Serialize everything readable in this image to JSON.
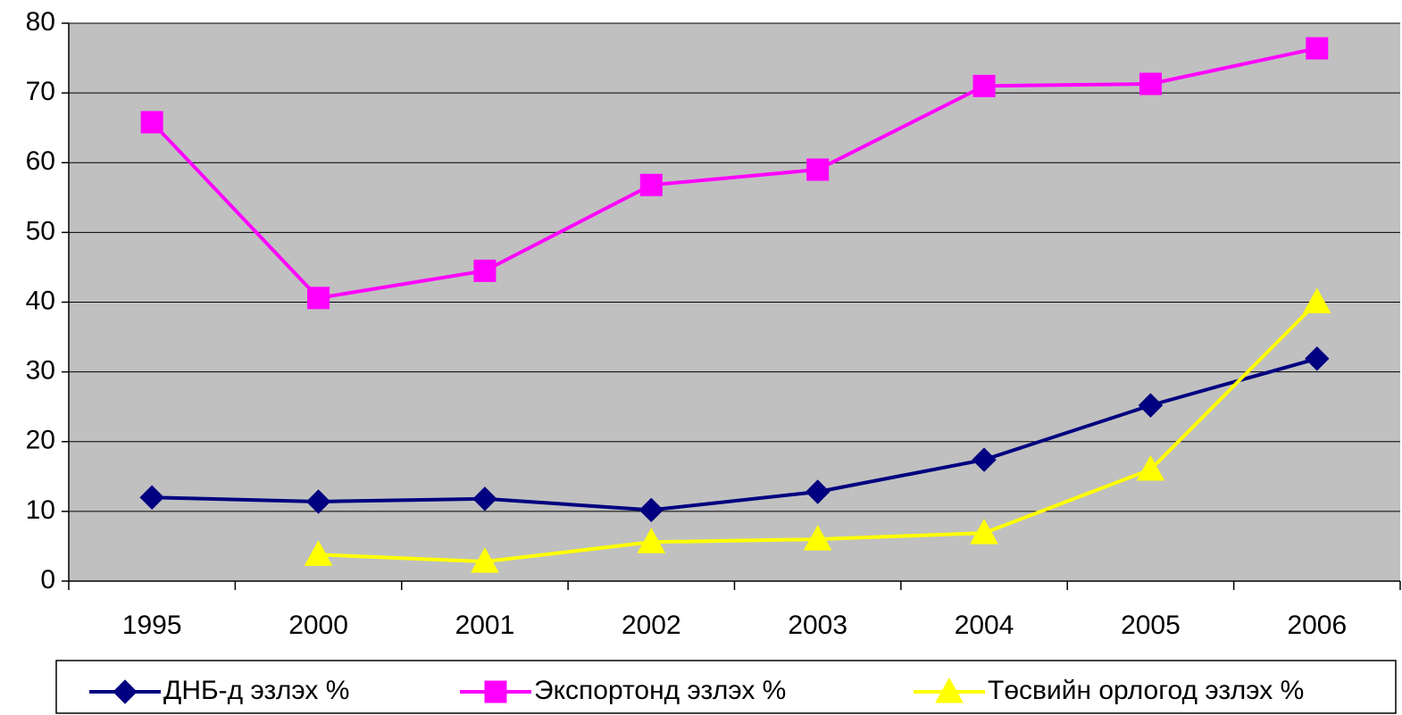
{
  "chart_data": {
    "type": "line",
    "categories": [
      "1995",
      "2000",
      "2001",
      "2002",
      "2003",
      "2004",
      "2005",
      "2006"
    ],
    "series": [
      {
        "name": "ДНБ-д эзлэх %",
        "color": "#000080",
        "marker": "diamond",
        "values": [
          12.0,
          11.4,
          11.8,
          10.2,
          12.8,
          17.4,
          25.2,
          31.9
        ]
      },
      {
        "name": "Экспортонд эзлэх %",
        "color": "#ff00ff",
        "marker": "square",
        "values": [
          65.8,
          40.6,
          44.5,
          56.8,
          59.0,
          71.0,
          71.3,
          76.4
        ]
      },
      {
        "name": "Төсвийн орлогод эзлэх %",
        "color": "#ffff00",
        "marker": "triangle",
        "values": [
          null,
          3.8,
          2.8,
          5.6,
          6.0,
          6.9,
          16.0,
          40.0
        ]
      }
    ],
    "ylim": [
      0,
      80
    ],
    "yticks": [
      0,
      10,
      20,
      30,
      40,
      50,
      60,
      70,
      80
    ],
    "grid": true,
    "legend": "bottom"
  }
}
